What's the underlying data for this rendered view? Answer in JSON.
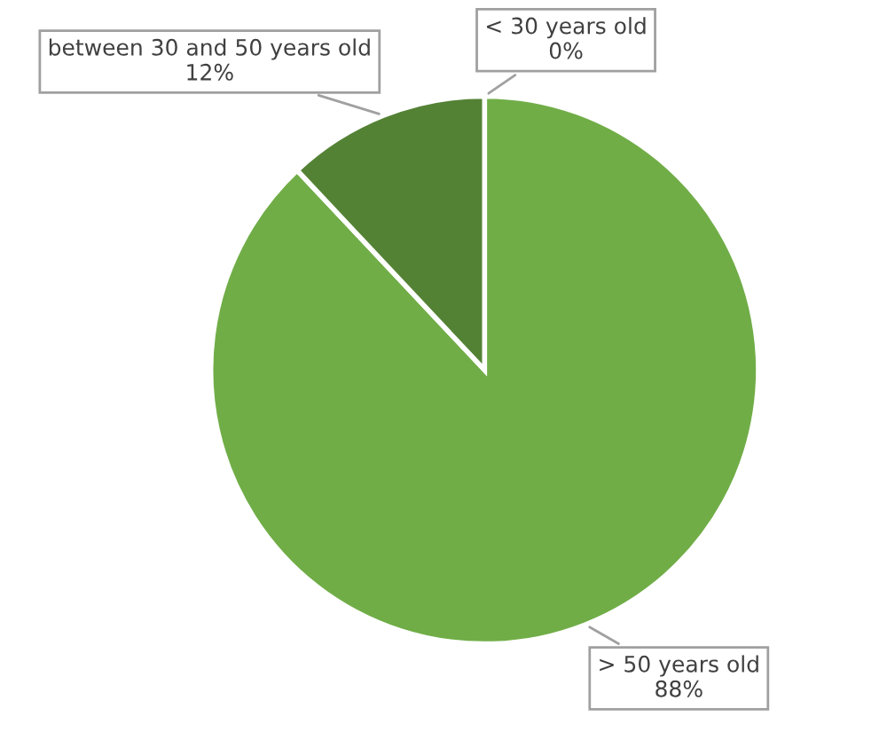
{
  "chart_data": {
    "type": "pie",
    "categories": [
      "< 30 years old",
      "> 50 years old",
      "between 30 and 50 years old"
    ],
    "values": [
      0,
      88,
      12
    ],
    "colors": [
      "#70ad47",
      "#70ad47",
      "#548235"
    ],
    "value_labels": [
      "0%",
      "88%",
      "12%"
    ]
  }
}
